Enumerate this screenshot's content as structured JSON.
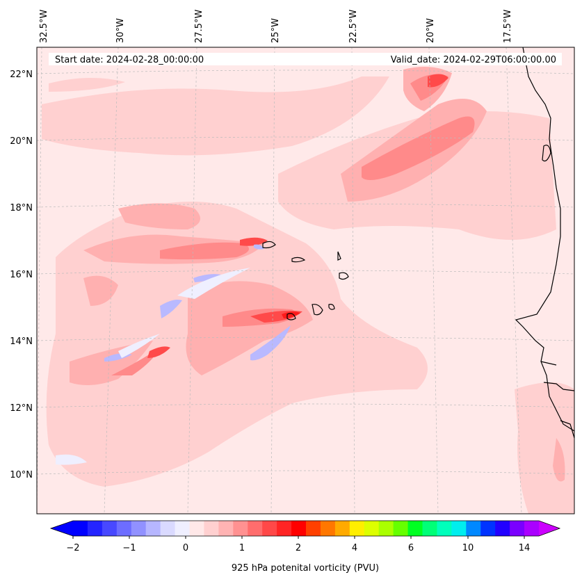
{
  "header": {
    "start_date": "Start date: 2024-02-28_00:00:00",
    "valid_date": "Valid_date: 2024-02-29T06:00:00.00"
  },
  "map": {
    "region": "Cape Verde / West Africa coast",
    "lon_labels": [
      "32.5°W",
      "30°W",
      "27.5°W",
      "25°W",
      "22.5°W",
      "20°W",
      "17.5°W"
    ],
    "lat_labels": [
      "22°N",
      "20°N",
      "18°N",
      "16°N",
      "14°N",
      "12°N",
      "10°N"
    ],
    "gridlines": "dashed"
  },
  "colorbar": {
    "label": "925 hPa potenital vorticity (PVU)",
    "ticks": [
      "−2",
      "−1",
      "0",
      "1",
      "2",
      "4",
      "6",
      "10",
      "14"
    ],
    "extend": "both",
    "colors": [
      "#0000ff",
      "#2424ff",
      "#4848ff",
      "#6d6dff",
      "#9191ff",
      "#b6b6ff",
      "#dadaff",
      "#efefff",
      "#ffe8e8",
      "#ffd0d0",
      "#ffb3b3",
      "#ff9191",
      "#ff6d6d",
      "#ff4848",
      "#ff2424",
      "#ff0000",
      "#ff4000",
      "#ff7700",
      "#ffaa00",
      "#ffee00",
      "#ddff00",
      "#aaff00",
      "#66ff00",
      "#00ff22",
      "#00ff77",
      "#00ffbb",
      "#00eeee",
      "#0088ff",
      "#0033ff",
      "#2200ff",
      "#7a00ff",
      "#aa00ff"
    ],
    "under_color": "#0000ff",
    "over_color": "#cc00ff"
  }
}
